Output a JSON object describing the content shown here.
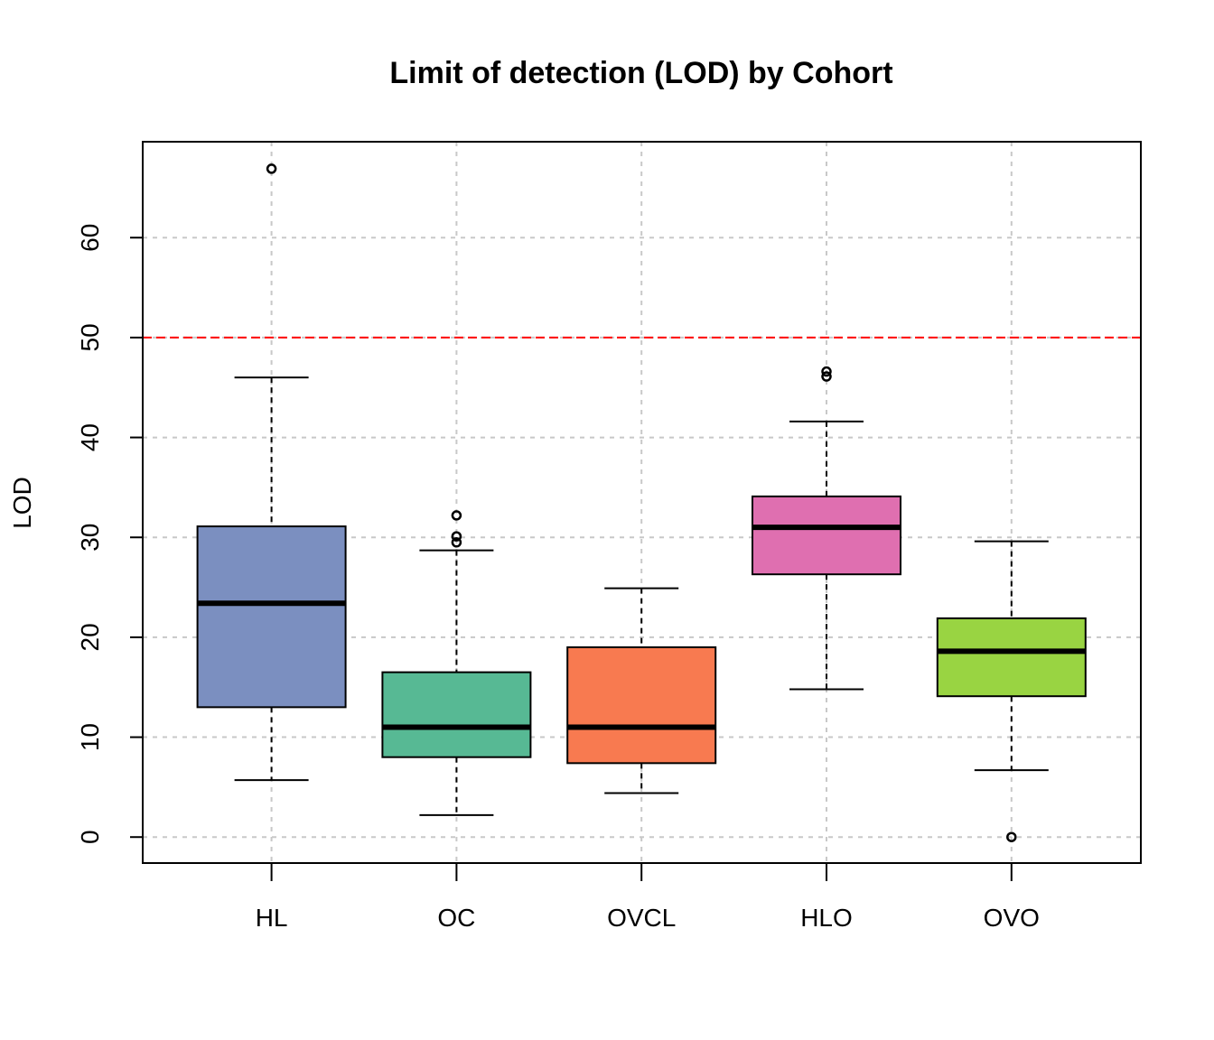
{
  "chart_data": {
    "type": "box",
    "title": "Limit of detection (LOD) by Cohort",
    "xlabel": "",
    "ylabel": "LOD",
    "ylim": [
      -2.6,
      69.6
    ],
    "yticks": [
      0,
      10,
      20,
      30,
      40,
      50,
      60
    ],
    "grid": true,
    "reference_line": {
      "y": 50,
      "color": "#ff0000",
      "style": "dashed"
    },
    "categories": [
      "HL",
      "OC",
      "OVCL",
      "HLO",
      "OVO"
    ],
    "boxes": [
      {
        "name": "HL",
        "color": "#7b8fc0",
        "whisker_low": 5.7,
        "q1": 13.0,
        "median": 23.4,
        "q3": 31.1,
        "whisker_high": 46.0,
        "outliers": [
          66.9
        ]
      },
      {
        "name": "OC",
        "color": "#57b994",
        "whisker_low": 2.2,
        "q1": 8.0,
        "median": 11.0,
        "q3": 16.5,
        "whisker_high": 28.7,
        "outliers": [
          29.5,
          30.1,
          32.2
        ]
      },
      {
        "name": "OVCL",
        "color": "#f87a50",
        "whisker_low": 4.4,
        "q1": 7.4,
        "median": 11.0,
        "q3": 19.0,
        "whisker_high": 24.9,
        "outliers": []
      },
      {
        "name": "HLO",
        "color": "#df6fb0",
        "whisker_low": 14.8,
        "q1": 26.3,
        "median": 31.0,
        "q3": 34.1,
        "whisker_high": 41.6,
        "outliers": [
          46.1,
          46.6
        ]
      },
      {
        "name": "OVO",
        "color": "#99d442",
        "whisker_low": 6.7,
        "q1": 14.1,
        "median": 18.6,
        "q3": 21.9,
        "whisker_high": 29.6,
        "outliers": [
          0.0
        ]
      }
    ]
  }
}
